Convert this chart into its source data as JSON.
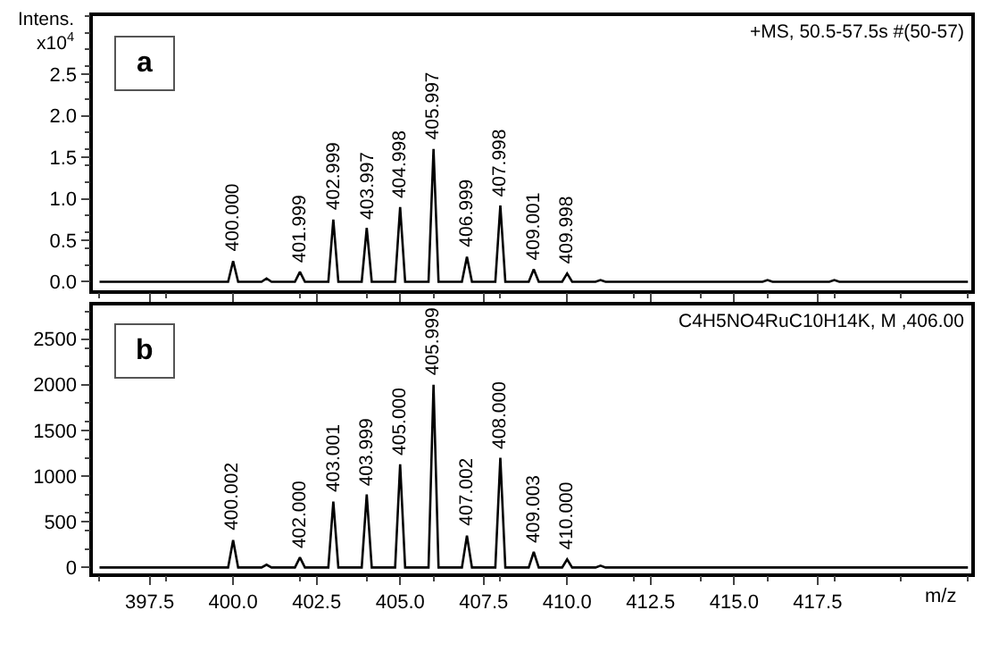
{
  "chart_data": [
    {
      "type": "line",
      "ylabel": "Intens.\nx10$^{4}$",
      "xlim": [
        395.8,
        422.1
      ],
      "ylim": [
        -0.1,
        3.2
      ],
      "xticks": [
        397.5,
        400,
        402.5,
        405,
        407.5,
        410,
        412.5,
        415,
        417.5
      ],
      "yticks": [
        {
          "value": 0,
          "label": "0.0"
        },
        {
          "value": 0.5,
          "label": "0.5"
        },
        {
          "value": 1,
          "label": "1.0"
        },
        {
          "value": 1.5,
          "label": "1.5"
        },
        {
          "value": 2,
          "label": "2.0"
        },
        {
          "value": 2.5,
          "label": "2.5"
        }
      ],
      "tick_labels": "y",
      "series": [
        {
          "color": "#000000",
          "x": [
            396,
            399.85,
            400,
            400.15,
            400.85,
            401,
            401.15,
            401.85,
            402,
            402.15,
            402.85,
            403,
            403.15,
            403.85,
            404,
            404.15,
            404.85,
            405,
            405.15,
            405.85,
            406,
            406.15,
            406.85,
            407,
            407.15,
            407.85,
            408,
            408.15,
            408.85,
            409,
            409.15,
            409.85,
            410,
            410.15,
            410.85,
            411,
            411.15,
            415.85,
            416,
            416.15,
            417.85,
            418,
            418.15,
            422
          ],
          "values": [
            0,
            0,
            0.25,
            0,
            0,
            0.04,
            0,
            0,
            0.12,
            0,
            0,
            0.75,
            0,
            0,
            0.65,
            0,
            0,
            0.9,
            0,
            0,
            1.6,
            0,
            0,
            0.3,
            0,
            0,
            0.92,
            0,
            0,
            0.15,
            0,
            0,
            0.1,
            0,
            0,
            0.02,
            0,
            0,
            0.02,
            0,
            0,
            0.02,
            0,
            0
          ]
        }
      ],
      "annotations": [
        "a",
        "+MS, 50.5-57.5s #(50-57)",
        {
          "text": "400.000",
          "x": 400,
          "y": 0.25
        },
        {
          "text": "401.999",
          "x": 402,
          "y": 0.12
        },
        {
          "text": "402.999",
          "x": 403,
          "y": 0.75
        },
        {
          "text": "403.997",
          "x": 404,
          "y": 0.65
        },
        {
          "text": "404.998",
          "x": 405,
          "y": 0.9
        },
        {
          "text": "405.997",
          "x": 406,
          "y": 1.6
        },
        {
          "text": "406.999",
          "x": 407,
          "y": 0.3
        },
        {
          "text": "407.998",
          "x": 408,
          "y": 0.92
        },
        {
          "text": "409.001",
          "x": 409,
          "y": 0.15
        },
        {
          "text": "409.998",
          "x": 410,
          "y": 0.1
        }
      ]
    },
    {
      "type": "line",
      "xlabel": "m/z",
      "xlim": [
        395.8,
        422.1
      ],
      "ylim": [
        -60,
        2870
      ],
      "xticks": [
        {
          "value": 397.5,
          "label": "397.5"
        },
        {
          "value": 400,
          "label": "400.0"
        },
        {
          "value": 402.5,
          "label": "402.5"
        },
        {
          "value": 405,
          "label": "405.0"
        },
        {
          "value": 407.5,
          "label": "407.5"
        },
        {
          "value": 410,
          "label": "410.0"
        },
        {
          "value": 412.5,
          "label": "412.5"
        },
        {
          "value": 415,
          "label": "415.0"
        },
        {
          "value": 417.5,
          "label": "417.5"
        }
      ],
      "yticks": [
        0,
        500,
        1000,
        1500,
        2000,
        2500
      ],
      "series": [
        {
          "color": "#000000",
          "x": [
            396,
            399.85,
            400,
            400.15,
            400.85,
            401,
            401.15,
            401.85,
            402,
            402.15,
            402.85,
            403,
            403.15,
            403.85,
            404,
            404.15,
            404.85,
            405,
            405.15,
            405.85,
            406,
            406.15,
            406.85,
            407,
            407.15,
            407.85,
            408,
            408.15,
            408.85,
            409,
            409.15,
            409.85,
            410,
            410.15,
            410.85,
            411,
            411.15,
            422
          ],
          "values": [
            0,
            0,
            300,
            0,
            0,
            30,
            0,
            0,
            110,
            0,
            0,
            720,
            0,
            0,
            800,
            0,
            0,
            1130,
            0,
            0,
            2000,
            0,
            0,
            350,
            0,
            0,
            1200,
            0,
            0,
            170,
            0,
            0,
            90,
            0,
            0,
            20,
            0,
            0
          ]
        }
      ],
      "annotations": [
        "b",
        "C4H5NO4RuC10H14K, M ,406.00",
        {
          "text": "400.002",
          "x": 400,
          "y": 300
        },
        {
          "text": "402.000",
          "x": 402,
          "y": 110
        },
        {
          "text": "403.001",
          "x": 403,
          "y": 720
        },
        {
          "text": "403.999",
          "x": 404,
          "y": 800
        },
        {
          "text": "405.000",
          "x": 405,
          "y": 1130
        },
        {
          "text": "405.999",
          "x": 406,
          "y": 2000
        },
        {
          "text": "407.002",
          "x": 407,
          "y": 350
        },
        {
          "text": "408.000",
          "x": 408,
          "y": 1200
        },
        {
          "text": "409.003",
          "x": 409,
          "y": 170
        },
        {
          "text": "410.000",
          "x": 410,
          "y": 90
        }
      ]
    }
  ]
}
